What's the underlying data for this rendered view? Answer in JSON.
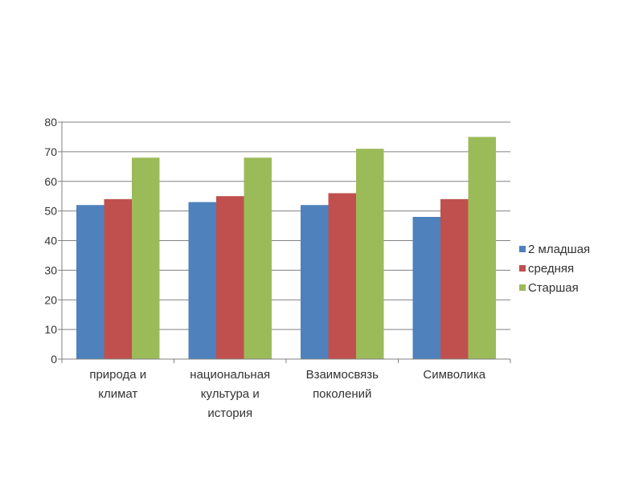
{
  "chart_data": {
    "type": "bar",
    "categories": [
      [
        "природа и",
        "климат"
      ],
      [
        "национальная",
        "культура и",
        "история"
      ],
      [
        "Взаимосвязь",
        "поколений"
      ],
      [
        "Символика"
      ]
    ],
    "series": [
      {
        "name": "2 младшая",
        "color": "#4f81bd",
        "values": [
          52,
          53,
          52,
          48
        ]
      },
      {
        "name": "средняя",
        "color": "#c0504d",
        "values": [
          54,
          55,
          56,
          54
        ]
      },
      {
        "name": "Старшая",
        "color": "#9bbb59",
        "values": [
          68,
          68,
          71,
          75
        ]
      }
    ],
    "ylim": [
      0,
      80
    ],
    "yticks": [
      0,
      10,
      20,
      30,
      40,
      50,
      60,
      70,
      80
    ],
    "grid": true,
    "legend": "right"
  }
}
